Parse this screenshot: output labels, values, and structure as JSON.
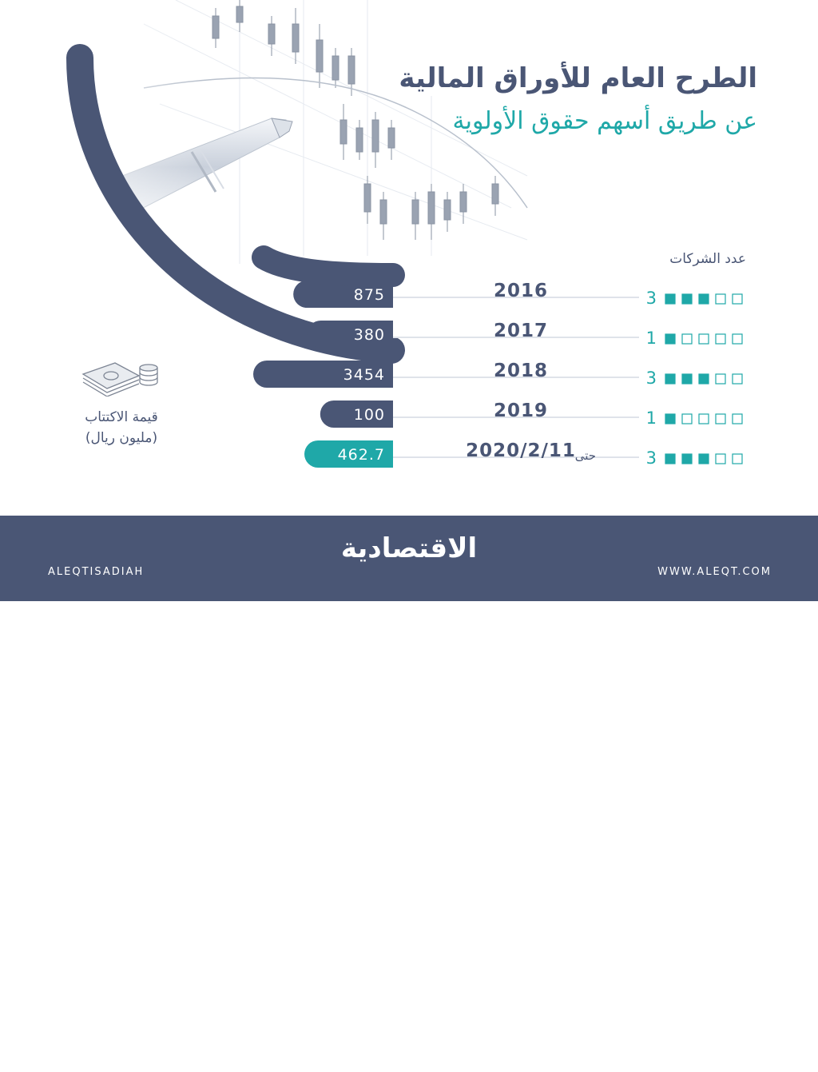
{
  "header": {
    "title": "الطرح العام للأوراق المالية",
    "subtitle": "عن طريق أسهم حقوق الأولوية"
  },
  "labels": {
    "count_header": "عدد الشركات",
    "ipo_value_label": "قيمة الاكتتاب",
    "ipo_value_unit": "(مليون ريال)"
  },
  "colors": {
    "navy": "#4a5675",
    "teal": "#1fa8a8",
    "background": "#ffffff"
  },
  "icons": {
    "money": "money-stack-icon",
    "instagram": "instagram-icon",
    "facebook": "facebook-icon",
    "twitter": "twitter-icon",
    "dribbble": "globe-icon"
  },
  "chart_data": {
    "type": "bar",
    "categories": [
      "2016",
      "2017",
      "2018",
      "2019",
      "2020/2/11"
    ],
    "category_prefix": [
      "",
      "",
      "",
      "",
      "حتى"
    ],
    "values": [
      875,
      380,
      3454,
      100,
      462.7
    ],
    "value_labels": [
      "875",
      "380",
      "3454",
      "100",
      "462.7"
    ],
    "company_counts": [
      3,
      1,
      3,
      1,
      3
    ],
    "company_count_max": 5,
    "highlight_index": 4
  },
  "footer": {
    "handle": "ALEQTISADIAH",
    "site": "WWW.ALEQT.COM",
    "logo": "الاقتصادية"
  }
}
